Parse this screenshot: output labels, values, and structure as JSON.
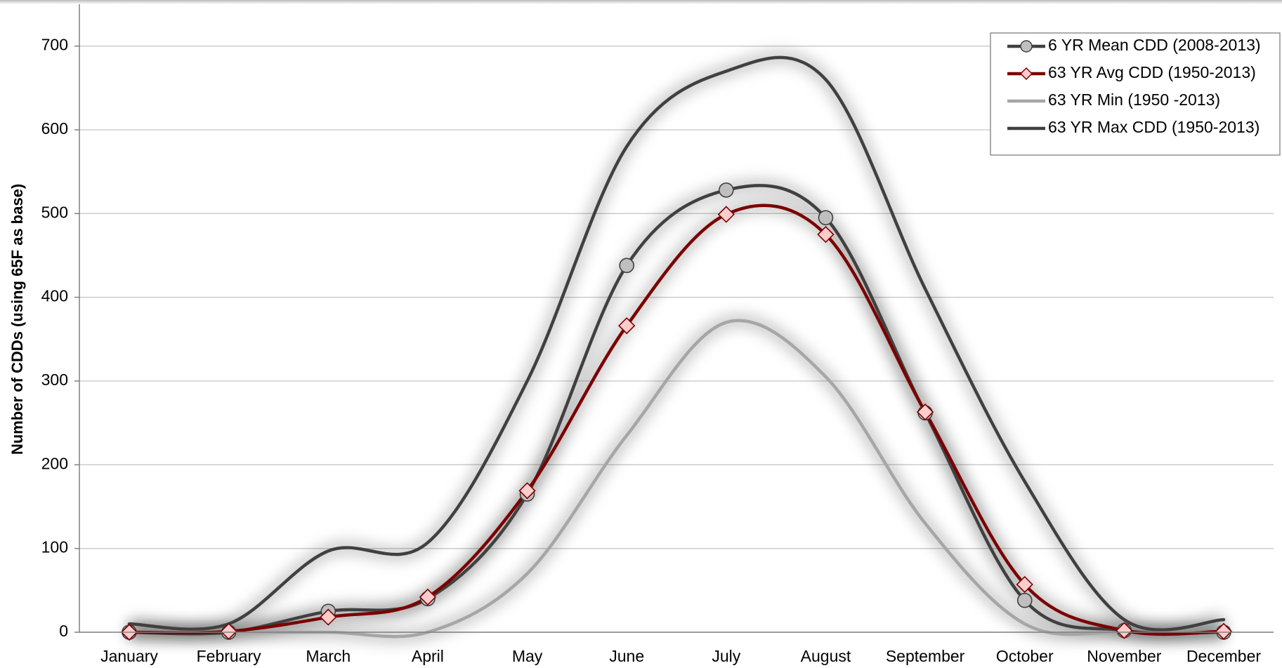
{
  "chart_data": {
    "type": "line",
    "y_label": "Number of CDDs (using 65F as base)",
    "categories": [
      "January",
      "February",
      "March",
      "April",
      "May",
      "June",
      "July",
      "August",
      "September",
      "October",
      "November",
      "December"
    ],
    "series": [
      {
        "name": "6 YR Mean CDD (2008-2013)",
        "color": "#404040",
        "marker": "circle",
        "marker_color": "#bfbfbf",
        "values": [
          0,
          0,
          25,
          40,
          165,
          438,
          528,
          495,
          262,
          38,
          2,
          0
        ]
      },
      {
        "name": "63 YR Avg CDD (1950-2013)",
        "color": "#7b0000",
        "marker": "diamond",
        "marker_color": "#ffcccc",
        "values": [
          0,
          1,
          18,
          42,
          169,
          366,
          499,
          475,
          263,
          57,
          2,
          1
        ]
      },
      {
        "name": "63 YR Min (1950 -2013)",
        "color": "#a6a6a6",
        "marker": "none",
        "marker_color": "#a6a6a6",
        "values": [
          0,
          0,
          0,
          0,
          70,
          235,
          370,
          305,
          130,
          10,
          0,
          0
        ]
      },
      {
        "name": "63 YR Max CDD (1950-2013)",
        "color": "#404040",
        "marker": "none",
        "marker_color": "#404040",
        "values": [
          10,
          10,
          97,
          107,
          300,
          580,
          670,
          660,
          410,
          180,
          15,
          15
        ]
      }
    ],
    "ylim": [
      0,
      750
    ],
    "yticks": [
      0,
      100,
      200,
      300,
      400,
      500,
      600,
      700
    ],
    "grid": true,
    "legend": "top-right"
  }
}
